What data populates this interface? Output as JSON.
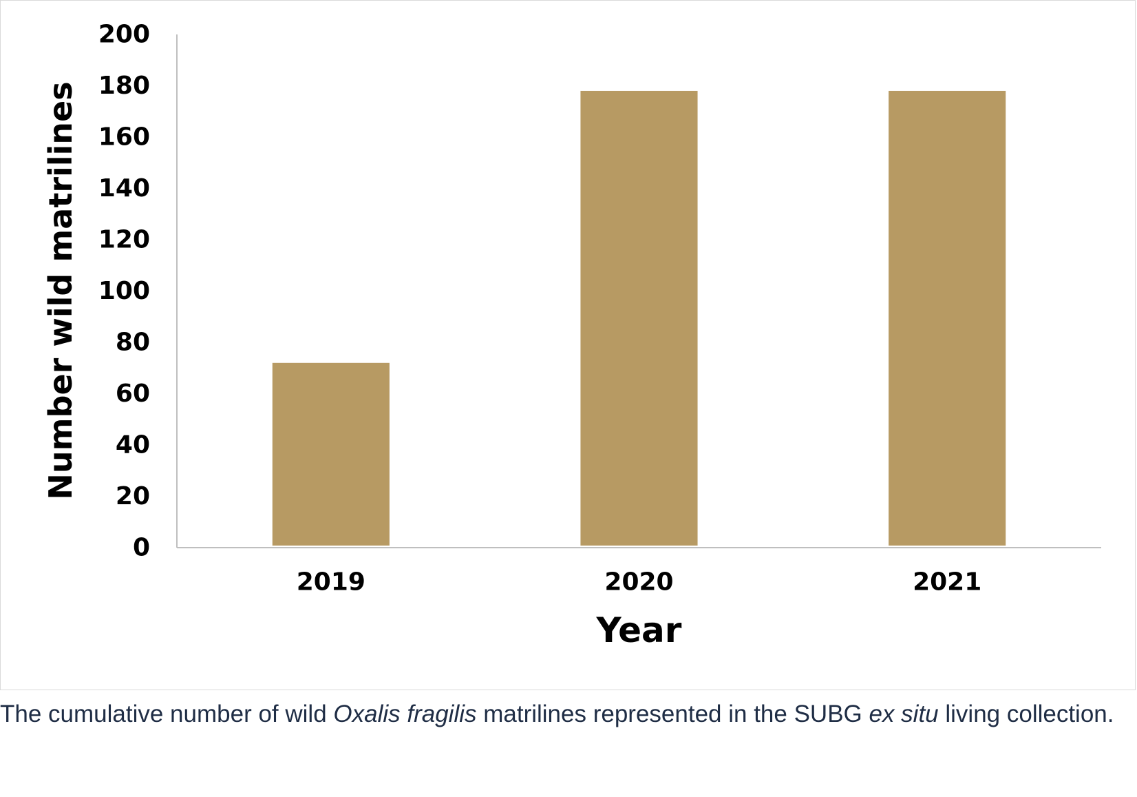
{
  "chart_data": {
    "type": "bar",
    "categories": [
      "2019",
      "2020",
      "2021"
    ],
    "values": [
      72,
      178,
      178
    ],
    "xlabel": "Year",
    "ylabel": "Number wild matrilines",
    "ylim": [
      0,
      200
    ],
    "yticks": [
      "0",
      "20",
      "40",
      "60",
      "80",
      "100",
      "120",
      "140",
      "160",
      "180",
      "200"
    ],
    "bar_color": "#b79a63",
    "axis_color": "#bfbfbf",
    "grid": false,
    "legend": "none"
  },
  "caption": {
    "part1": "The cumulative number of wild ",
    "species": "Oxalis fragilis",
    "part2": " matrilines represented in the SUBG ",
    "term": "ex situ",
    "part3": " living collection."
  }
}
